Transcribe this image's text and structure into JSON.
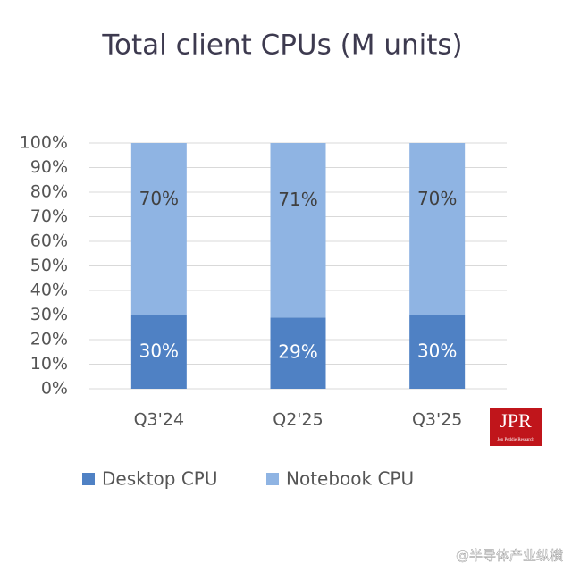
{
  "chart_data": {
    "type": "stacked_bar",
    "title": "Total client CPUs (M units)",
    "categories": [
      "Q3'24",
      "Q2'25",
      "Q3'25"
    ],
    "series": [
      {
        "name": "Desktop CPU",
        "color": "#4f81c4",
        "values": [
          30,
          29,
          30
        ],
        "value_labels": [
          "30%",
          "29%",
          "30%"
        ]
      },
      {
        "name": "Notebook CPU",
        "color": "#8fb4e3",
        "values": [
          70,
          71,
          70
        ],
        "value_labels": [
          "70%",
          "71%",
          "70%"
        ]
      }
    ],
    "ylim": [
      0,
      100
    ],
    "yticks": [
      {
        "value": 0,
        "label": "0%"
      },
      {
        "value": 10,
        "label": "10%"
      },
      {
        "value": 20,
        "label": "20%"
      },
      {
        "value": 30,
        "label": "30%"
      },
      {
        "value": 40,
        "label": "40%"
      },
      {
        "value": 50,
        "label": "50%"
      },
      {
        "value": 60,
        "label": "60%"
      },
      {
        "value": 70,
        "label": "70%"
      },
      {
        "value": 80,
        "label": "80%"
      },
      {
        "value": 90,
        "label": "90%"
      },
      {
        "value": 100,
        "label": "100%"
      }
    ],
    "grid": true,
    "legend": "bottom"
  },
  "logo": {
    "text": "JPR",
    "subtitle": "Jon Peddie Research"
  },
  "watermark": "@半导体产业纵横"
}
